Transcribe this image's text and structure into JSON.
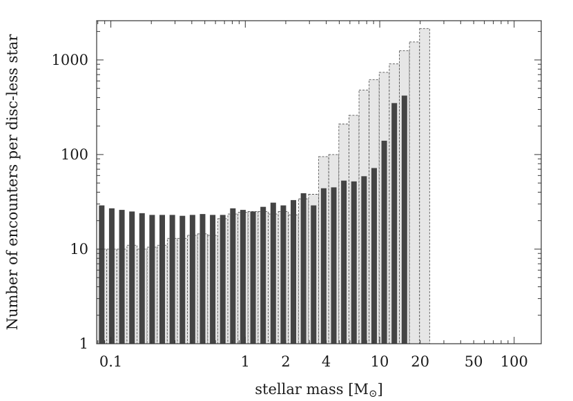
{
  "chart_data": {
    "type": "bar",
    "title": "",
    "xlabel": "stellar mass [M",
    "xlabel_subscript": "⊙",
    "xlabel_suffix": "]",
    "ylabel": "Number of encounters per disc-less star",
    "x_scale": "log",
    "y_scale": "log",
    "xlim": [
      0.0784,
      159
    ],
    "ylim": [
      1,
      2600
    ],
    "x_ticks": [
      {
        "value": 0.1,
        "label": "0.1"
      },
      {
        "value": 1,
        "label": "1"
      },
      {
        "value": 2,
        "label": "2"
      },
      {
        "value": 4,
        "label": "4"
      },
      {
        "value": 10,
        "label": "10"
      },
      {
        "value": 20,
        "label": "20"
      },
      {
        "value": 50,
        "label": "50"
      },
      {
        "value": 100,
        "label": "100"
      }
    ],
    "y_ticks": [
      {
        "value": 1,
        "label": "1"
      },
      {
        "value": 10,
        "label": "10"
      },
      {
        "value": 100,
        "label": "100"
      },
      {
        "value": 1000,
        "label": "1000"
      }
    ],
    "bin_centers": [
      0.0855,
      0.1016,
      0.1208,
      0.1436,
      0.1706,
      0.2028,
      0.2411,
      0.2866,
      0.3407,
      0.4049,
      0.4813,
      0.5721,
      0.6801,
      0.8084,
      0.9609,
      1.1422,
      1.3577,
      1.6138,
      1.9183,
      2.2802,
      2.7104,
      3.2218,
      3.8297,
      4.5522,
      5.4111,
      6.432,
      7.6455,
      9.088,
      10.803,
      12.841,
      15.264,
      18.143,
      21.566,
      25.635,
      30.472,
      36.221,
      43.055,
      51.178,
      60.834,
      72.311,
      85.954,
      102.17,
      121.45,
      144.36
    ],
    "series": [
      {
        "style": "solid-dark",
        "color": "#444444",
        "values": [
          29,
          27,
          26,
          25,
          24,
          23,
          23,
          23,
          22.5,
          23,
          23.5,
          23,
          23,
          27,
          26,
          25,
          28,
          31,
          29,
          33,
          39,
          29,
          44,
          45,
          53,
          52,
          59,
          72,
          140,
          350,
          420
        ]
      },
      {
        "style": "dashed-light",
        "color": "#e6e6e6",
        "values": [
          10,
          10,
          10,
          11,
          10,
          10.5,
          11,
          13,
          13,
          14,
          14.5,
          14,
          21,
          23.5,
          24.5,
          25,
          25,
          23.5,
          25,
          23,
          34,
          38,
          95,
          100,
          210,
          260,
          480,
          620,
          740,
          910,
          1250,
          1550,
          2150
        ]
      }
    ]
  }
}
